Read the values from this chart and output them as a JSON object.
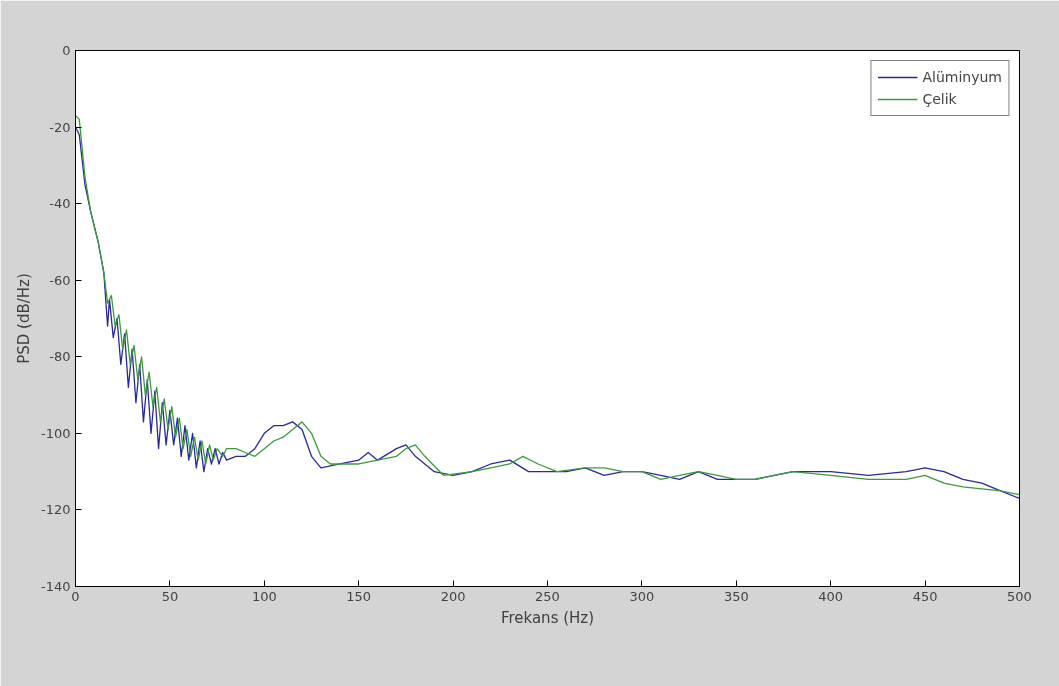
{
  "chart_data": {
    "type": "line",
    "xlabel": "Frekans (Hz)",
    "ylabel": "PSD (dB/Hz)",
    "xlim": [
      0,
      500
    ],
    "ylim": [
      -140,
      0
    ],
    "xticks": [
      0,
      50,
      100,
      150,
      200,
      250,
      300,
      350,
      400,
      450,
      500
    ],
    "yticks": [
      -140,
      -120,
      -100,
      -80,
      -60,
      -40,
      -20,
      0
    ],
    "grid": false,
    "legend": "top right",
    "line_style": "solid",
    "marker": "none",
    "series": [
      {
        "name": "Alüminyum",
        "color": "#2828a0",
        "x": [
          0,
          2,
          5,
          8,
          12,
          15,
          17,
          18,
          20,
          22,
          24,
          26,
          28,
          30,
          32,
          34,
          36,
          38,
          40,
          42,
          44,
          46,
          48,
          50,
          52,
          54,
          56,
          58,
          60,
          62,
          64,
          66,
          68,
          70,
          72,
          74,
          76,
          78,
          80,
          85,
          90,
          95,
          100,
          105,
          110,
          115,
          120,
          125,
          130,
          140,
          150,
          155,
          160,
          170,
          175,
          180,
          190,
          200,
          210,
          220,
          230,
          240,
          250,
          260,
          270,
          280,
          290,
          300,
          310,
          320,
          330,
          340,
          350,
          360,
          370,
          380,
          390,
          400,
          420,
          440,
          450,
          460,
          470,
          480,
          490,
          500
        ],
        "values": [
          -20,
          -22,
          -35,
          -42,
          -50,
          -58,
          -72,
          -65,
          -75,
          -70,
          -82,
          -74,
          -88,
          -78,
          -92,
          -82,
          -97,
          -86,
          -100,
          -89,
          -104,
          -92,
          -103,
          -94,
          -103,
          -96,
          -106,
          -98,
          -107,
          -100,
          -109,
          -102,
          -110,
          -104,
          -108,
          -104,
          -108,
          -105,
          -107,
          -106,
          -106,
          -104,
          -100,
          -98,
          -98,
          -97,
          -99,
          -106,
          -109,
          -108,
          -107,
          -105,
          -107,
          -104,
          -103,
          -106,
          -110,
          -111,
          -110,
          -108,
          -107,
          -110,
          -110,
          -110,
          -109,
          -111,
          -110,
          -110,
          -111,
          -112,
          -110,
          -112,
          -112,
          -112,
          -111,
          -110,
          -110,
          -110,
          -111,
          -110,
          -109,
          -110,
          -112,
          -113,
          -115,
          -117
        ]
      },
      {
        "name": "Çelik",
        "color": "#3c9a3c",
        "x": [
          0,
          2,
          5,
          8,
          12,
          15,
          17,
          19,
          21,
          23,
          25,
          27,
          29,
          31,
          33,
          35,
          37,
          39,
          41,
          43,
          45,
          47,
          49,
          51,
          53,
          55,
          57,
          59,
          61,
          63,
          65,
          67,
          69,
          71,
          73,
          75,
          78,
          80,
          85,
          90,
          95,
          100,
          105,
          110,
          115,
          120,
          125,
          130,
          135,
          150,
          160,
          170,
          175,
          180,
          185,
          195,
          210,
          220,
          230,
          237,
          245,
          255,
          270,
          280,
          290,
          300,
          310,
          320,
          330,
          340,
          350,
          360,
          380,
          400,
          420,
          430,
          440,
          450,
          460,
          470,
          490,
          500
        ],
        "values": [
          -17,
          -18,
          -33,
          -42,
          -50,
          -58,
          -66,
          -64,
          -72,
          -69,
          -78,
          -73,
          -82,
          -77,
          -86,
          -80,
          -90,
          -84,
          -93,
          -88,
          -97,
          -91,
          -99,
          -93,
          -101,
          -96,
          -104,
          -99,
          -106,
          -101,
          -107,
          -102,
          -108,
          -103,
          -107,
          -104,
          -106,
          -104,
          -104,
          -105,
          -106,
          -104,
          -102,
          -101,
          -99,
          -97,
          -100,
          -106,
          -108,
          -108,
          -107,
          -106,
          -104,
          -103,
          -106,
          -111,
          -110,
          -109,
          -108,
          -106,
          -108,
          -110,
          -109,
          -109,
          -110,
          -110,
          -112,
          -111,
          -110,
          -111,
          -112,
          -112,
          -110,
          -111,
          -112,
          -112,
          -112,
          -111,
          -113,
          -114,
          -115,
          -116
        ]
      }
    ]
  }
}
